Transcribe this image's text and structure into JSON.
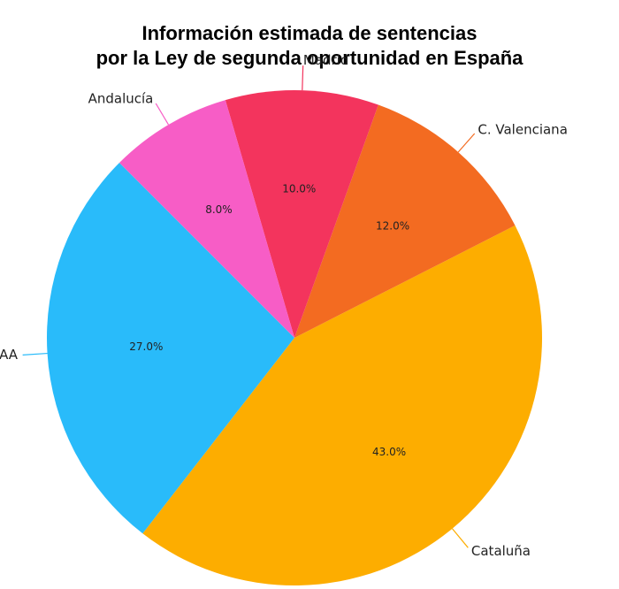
{
  "chart_data": {
    "type": "pie",
    "title_line1": "Información estimada de sentencias",
    "title_line2": "por la Ley de segunda oportunidad en España",
    "slices": [
      {
        "label": "Resto de CCAA",
        "value": 27.0,
        "pct_text": "27.0%",
        "color": "#29bbfa"
      },
      {
        "label": "Cataluña",
        "value": 43.0,
        "pct_text": "43.0%",
        "color": "#fdad00"
      },
      {
        "label": "C. Valenciana",
        "value": 12.0,
        "pct_text": "12.0%",
        "color": "#f36b21"
      },
      {
        "label": "Madrid",
        "value": 10.0,
        "pct_text": "10.0%",
        "color": "#f3345d"
      },
      {
        "label": "Andalucía",
        "value": 8.0,
        "pct_text": "8.0%",
        "color": "#f75dc6"
      }
    ]
  }
}
